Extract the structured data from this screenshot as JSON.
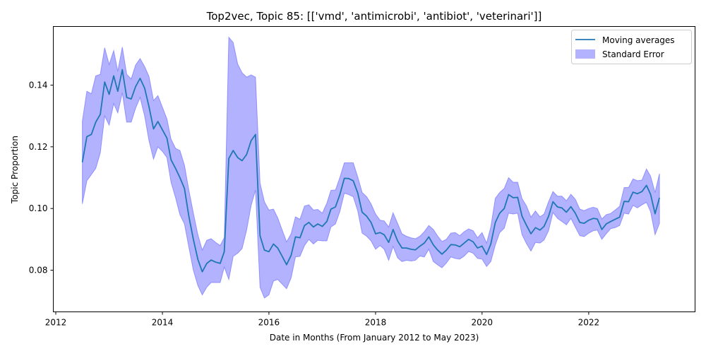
{
  "chart_data": {
    "type": "area",
    "title": "Top2vec, Topic 85: [['vmd', 'antimicrobi', 'antibiot', 'veterinari']]",
    "xlabel": "Date in Months (From January 2012 to May 2023)",
    "ylabel": "Topic Proportion",
    "x_tick_labels": [
      "2012",
      "2014",
      "2016",
      "2018",
      "2020",
      "2022"
    ],
    "y_tick_labels": [
      "0.08",
      "0.10",
      "0.12",
      "0.14"
    ],
    "xlim": [
      "2011-12-15",
      "2023-12-31"
    ],
    "ylim": [
      0.0665,
      0.159
    ],
    "grid": false,
    "legend_placement": "top-right",
    "colors": {
      "line": "#1f77b4",
      "band": "#6666ff"
    },
    "series": [
      {
        "name": "Moving averages",
        "x": [
          "2012-07-01",
          "2012-08-01",
          "2012-09-01",
          "2012-10-01",
          "2012-11-01",
          "2012-12-01",
          "2013-01-01",
          "2013-02-01",
          "2013-03-01",
          "2013-04-01",
          "2013-05-01",
          "2013-06-01",
          "2013-07-01",
          "2013-08-01",
          "2013-09-01",
          "2013-10-01",
          "2013-11-01",
          "2013-12-01",
          "2014-01-01",
          "2014-02-01",
          "2014-03-01",
          "2014-04-01",
          "2014-05-01",
          "2014-06-01",
          "2014-07-01",
          "2014-08-01",
          "2014-09-01",
          "2014-10-01",
          "2014-11-01",
          "2014-12-01",
          "2015-01-01",
          "2015-02-01",
          "2015-03-01",
          "2015-04-01",
          "2015-05-01",
          "2015-06-01",
          "2015-07-01",
          "2015-08-01",
          "2015-09-01",
          "2015-10-01",
          "2015-11-01",
          "2015-12-01",
          "2016-01-01",
          "2016-02-01",
          "2016-03-01",
          "2016-04-01",
          "2016-05-01",
          "2016-06-01",
          "2016-07-01",
          "2016-08-01",
          "2016-09-01",
          "2016-10-01",
          "2016-11-01",
          "2016-12-01",
          "2017-01-01",
          "2017-02-01",
          "2017-03-01",
          "2017-04-01",
          "2017-05-01",
          "2017-06-01",
          "2017-07-01",
          "2017-08-01",
          "2017-09-01",
          "2017-10-01",
          "2017-11-01",
          "2017-12-01",
          "2018-01-01",
          "2018-02-01",
          "2018-03-01",
          "2018-04-01",
          "2018-05-01",
          "2018-06-01",
          "2018-07-01",
          "2018-08-01",
          "2018-09-01",
          "2018-10-01",
          "2018-11-01",
          "2018-12-01",
          "2019-01-01",
          "2019-02-01",
          "2019-03-01",
          "2019-04-01",
          "2019-05-01",
          "2019-06-01",
          "2019-07-01",
          "2019-08-01",
          "2019-09-01",
          "2019-10-01",
          "2019-11-01",
          "2019-12-01",
          "2020-01-01",
          "2020-02-01",
          "2020-03-01",
          "2020-04-01",
          "2020-05-01",
          "2020-06-01",
          "2020-07-01",
          "2020-08-01",
          "2020-09-01",
          "2020-10-01",
          "2020-11-01",
          "2020-12-01",
          "2021-01-01",
          "2021-02-01",
          "2021-03-01",
          "2021-04-01",
          "2021-05-01",
          "2021-06-01",
          "2021-07-01",
          "2021-08-01",
          "2021-09-01",
          "2021-10-01",
          "2021-11-01",
          "2021-12-01",
          "2022-01-01",
          "2022-02-01",
          "2022-03-01",
          "2022-04-01",
          "2022-05-01",
          "2022-06-01",
          "2022-07-01",
          "2022-08-01",
          "2022-09-01",
          "2022-10-01",
          "2022-11-01",
          "2022-12-01",
          "2023-01-01",
          "2023-02-01",
          "2023-03-01",
          "2023-04-01",
          "2023-05-01"
        ],
        "values": [
          0.115,
          0.1233,
          0.124,
          0.128,
          0.1305,
          0.141,
          0.137,
          0.143,
          0.138,
          0.145,
          0.136,
          0.1355,
          0.1395,
          0.1422,
          0.139,
          0.133,
          0.1258,
          0.1282,
          0.1255,
          0.1228,
          0.1158,
          0.113,
          0.11,
          0.1065,
          0.0975,
          0.09,
          0.0835,
          0.0795,
          0.0822,
          0.0833,
          0.0826,
          0.0822,
          0.086,
          0.1162,
          0.1188,
          0.1165,
          0.1155,
          0.1175,
          0.122,
          0.124,
          0.0912,
          0.0865,
          0.086,
          0.0885,
          0.0872,
          0.0845,
          0.0818,
          0.0848,
          0.0908,
          0.0905,
          0.0945,
          0.0955,
          0.094,
          0.095,
          0.0942,
          0.0958,
          0.0998,
          0.1005,
          0.1045,
          0.1098,
          0.1097,
          0.109,
          0.105,
          0.0988,
          0.0975,
          0.0955,
          0.0918,
          0.0922,
          0.0915,
          0.089,
          0.0932,
          0.0895,
          0.0872,
          0.0872,
          0.0868,
          0.0866,
          0.0878,
          0.0888,
          0.0908,
          0.0882,
          0.0866,
          0.0852,
          0.0865,
          0.0883,
          0.0882,
          0.0876,
          0.0888,
          0.09,
          0.0892,
          0.0872,
          0.0878,
          0.0851,
          0.0885,
          0.0955,
          0.0985,
          0.1,
          0.1045,
          0.1035,
          0.1036,
          0.0975,
          0.0945,
          0.0918,
          0.0938,
          0.093,
          0.0942,
          0.0975,
          0.1022,
          0.1005,
          0.1002,
          0.0988,
          0.1006,
          0.0985,
          0.0955,
          0.0952,
          0.0962,
          0.0968,
          0.0966,
          0.0932,
          0.095,
          0.0958,
          0.0965,
          0.0972,
          0.1023,
          0.1022,
          0.1053,
          0.1048,
          0.1055,
          0.1075,
          0.1046,
          0.0983,
          0.1035
        ]
      },
      {
        "name": "Standard Error",
        "lower": [
          0.1015,
          0.109,
          0.111,
          0.113,
          0.118,
          0.13,
          0.127,
          0.134,
          0.131,
          0.1375,
          0.128,
          0.128,
          0.1325,
          0.136,
          0.13,
          0.122,
          0.116,
          0.12,
          0.1185,
          0.1165,
          0.1085,
          0.1035,
          0.098,
          0.095,
          0.0875,
          0.08,
          0.075,
          0.072,
          0.0745,
          0.076,
          0.076,
          0.076,
          0.081,
          0.077,
          0.0845,
          0.0855,
          0.087,
          0.093,
          0.101,
          0.106,
          0.0745,
          0.071,
          0.072,
          0.0765,
          0.077,
          0.0755,
          0.074,
          0.0775,
          0.0843,
          0.0845,
          0.088,
          0.09,
          0.0885,
          0.0897,
          0.0895,
          0.0895,
          0.094,
          0.095,
          0.099,
          0.105,
          0.1045,
          0.1038,
          0.0992,
          0.092,
          0.091,
          0.0895,
          0.0868,
          0.088,
          0.0868,
          0.0832,
          0.0877,
          0.084,
          0.0828,
          0.0832,
          0.083,
          0.0832,
          0.0846,
          0.0843,
          0.0868,
          0.0828,
          0.0818,
          0.0808,
          0.0823,
          0.0843,
          0.0838,
          0.0836,
          0.0846,
          0.0861,
          0.0855,
          0.0838,
          0.0836,
          0.0812,
          0.0828,
          0.0882,
          0.0922,
          0.0936,
          0.0985,
          0.0982,
          0.0985,
          0.0915,
          0.0886,
          0.0862,
          0.089,
          0.0888,
          0.0898,
          0.0928,
          0.0987,
          0.0968,
          0.0958,
          0.0947,
          0.0968,
          0.094,
          0.0912,
          0.0909,
          0.092,
          0.0928,
          0.093,
          0.09,
          0.0918,
          0.0935,
          0.0938,
          0.0945,
          0.0985,
          0.0982,
          0.101,
          0.1002,
          0.1012,
          0.102,
          0.099,
          0.0915,
          0.0952
        ],
        "upper": [
          0.1283,
          0.138,
          0.1372,
          0.143,
          0.1435,
          0.1521,
          0.1467,
          0.1512,
          0.1445,
          0.1523,
          0.1435,
          0.142,
          0.1465,
          0.1486,
          0.146,
          0.1428,
          0.135,
          0.1366,
          0.1328,
          0.129,
          0.1225,
          0.1195,
          0.1188,
          0.114,
          0.106,
          0.0985,
          0.0915,
          0.0865,
          0.0897,
          0.0902,
          0.089,
          0.088,
          0.0906,
          0.1555,
          0.1538,
          0.1468,
          0.144,
          0.1426,
          0.1433,
          0.1426,
          0.1083,
          0.1022,
          0.0995,
          0.0998,
          0.097,
          0.093,
          0.0892,
          0.0918,
          0.0973,
          0.0965,
          0.1008,
          0.1012,
          0.0995,
          0.0997,
          0.0985,
          0.1017,
          0.1059,
          0.106,
          0.11,
          0.1148,
          0.1148,
          0.1148,
          0.1102,
          0.1052,
          0.1038,
          0.1015,
          0.0982,
          0.0962,
          0.096,
          0.094,
          0.0986,
          0.0952,
          0.0918,
          0.091,
          0.0905,
          0.0902,
          0.091,
          0.0925,
          0.0945,
          0.0932,
          0.0912,
          0.0893,
          0.09,
          0.092,
          0.0922,
          0.0912,
          0.0925,
          0.0934,
          0.0928,
          0.0905,
          0.0922,
          0.0888,
          0.094,
          0.1033,
          0.1052,
          0.1065,
          0.11,
          0.1085,
          0.1085,
          0.1032,
          0.1008,
          0.0972,
          0.0992,
          0.0973,
          0.0982,
          0.1022,
          0.1055,
          0.104,
          0.104,
          0.1025,
          0.1046,
          0.103,
          0.0998,
          0.0993,
          0.1,
          0.1004,
          0.1,
          0.0966,
          0.098,
          0.0984,
          0.0995,
          0.1007,
          0.1068,
          0.1068,
          0.1096,
          0.109,
          0.1092,
          0.1128,
          0.1105,
          0.1052,
          0.1113
        ]
      }
    ]
  }
}
